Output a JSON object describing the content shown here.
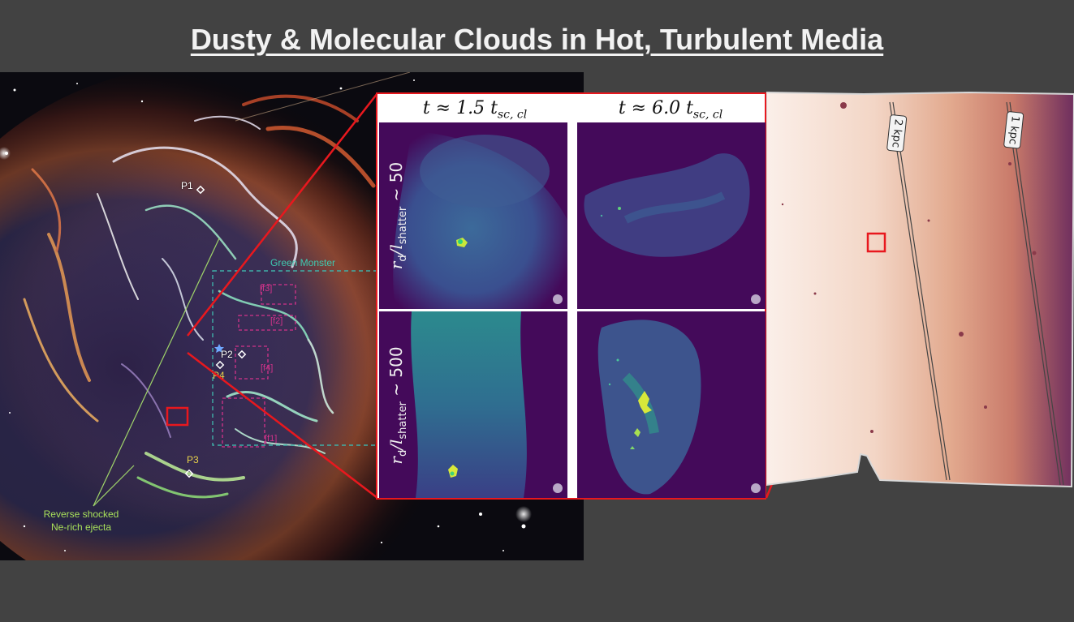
{
  "title": "Dusty & Molecular Clouds in Hot, Turbulent Media",
  "snr_image": {
    "points": [
      "P1",
      "P2",
      "P3",
      "P4"
    ],
    "region_green_monster": "Green Monster",
    "region_labels": [
      "[f1]",
      "[f2]",
      "[f3]",
      "[f4]"
    ],
    "annotation_line1": "Reverse shocked",
    "annotation_line2": "Ne-rich ejecta"
  },
  "simulation": {
    "col1_header": "t ≈ 1.5 t",
    "col1_sub": "sc, cl",
    "col2_header": "t ≈ 6.0 t",
    "col2_sub": "sc, cl",
    "row1_label": "r",
    "row1_sub_d": "d",
    "row1_mid": "/l",
    "row1_sub_s": "shatter",
    "row1_value": " ~ 50",
    "row2_label": "r",
    "row2_sub_d": "d",
    "row2_mid": "/l",
    "row2_sub_s": "shatter",
    "row2_value": " ~ 500"
  },
  "galaxy": {
    "label_2kpc": "2 kpc",
    "label_1kpc": "1 kpc"
  },
  "colors": {
    "background": "#424242",
    "highlight_red": "#e8181e",
    "sim_background": "#440a5a"
  }
}
